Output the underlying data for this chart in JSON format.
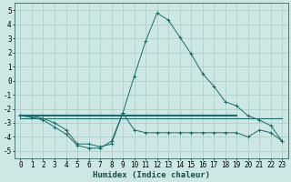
{
  "xlabel": "Humidex (Indice chaleur)",
  "xlim": [
    -0.5,
    23.5
  ],
  "ylim": [
    -5.5,
    5.5
  ],
  "xticks": [
    0,
    1,
    2,
    3,
    4,
    5,
    6,
    7,
    8,
    9,
    10,
    11,
    12,
    13,
    14,
    15,
    16,
    17,
    18,
    19,
    20,
    21,
    22,
    23
  ],
  "yticks": [
    -5,
    -4,
    -3,
    -2,
    -1,
    0,
    1,
    2,
    3,
    4,
    5
  ],
  "bg_color": "#cde8e4",
  "grid_color": "#b0d0cc",
  "line_color": "#1a6b6b",
  "line1_x": [
    0,
    1,
    2,
    3,
    4,
    5,
    6,
    7,
    8,
    9,
    10,
    11,
    12,
    13,
    14,
    15,
    16,
    17,
    18,
    19,
    20,
    21,
    22,
    23
  ],
  "line1_y": [
    -2.5,
    -2.6,
    -2.8,
    -3.3,
    -3.8,
    -4.6,
    -4.8,
    -4.8,
    -4.3,
    -2.3,
    -3.5,
    -3.7,
    -3.7,
    -3.7,
    -3.7,
    -3.7,
    -3.7,
    -3.7,
    -3.7,
    -3.7,
    -4.0,
    -3.5,
    -3.7,
    -4.3
  ],
  "line2_x": [
    0,
    19
  ],
  "line2_y": [
    -2.5,
    -2.5
  ],
  "line3_x": [
    0,
    1,
    2,
    3,
    4,
    5,
    6,
    7,
    8,
    9,
    10,
    11,
    12,
    13,
    14,
    15,
    16,
    17,
    18,
    19,
    20,
    21,
    22,
    23
  ],
  "line3_y": [
    -2.5,
    -2.5,
    -2.7,
    -3.0,
    -3.5,
    -4.5,
    -4.5,
    -4.7,
    -4.5,
    -2.3,
    0.3,
    2.8,
    4.8,
    4.3,
    3.1,
    1.9,
    0.5,
    -0.4,
    -1.5,
    -1.8,
    -2.5,
    -2.8,
    -3.2,
    -4.3
  ],
  "markersize": 2.5,
  "tick_fontsize": 5.5,
  "xlabel_fontsize": 6.5
}
